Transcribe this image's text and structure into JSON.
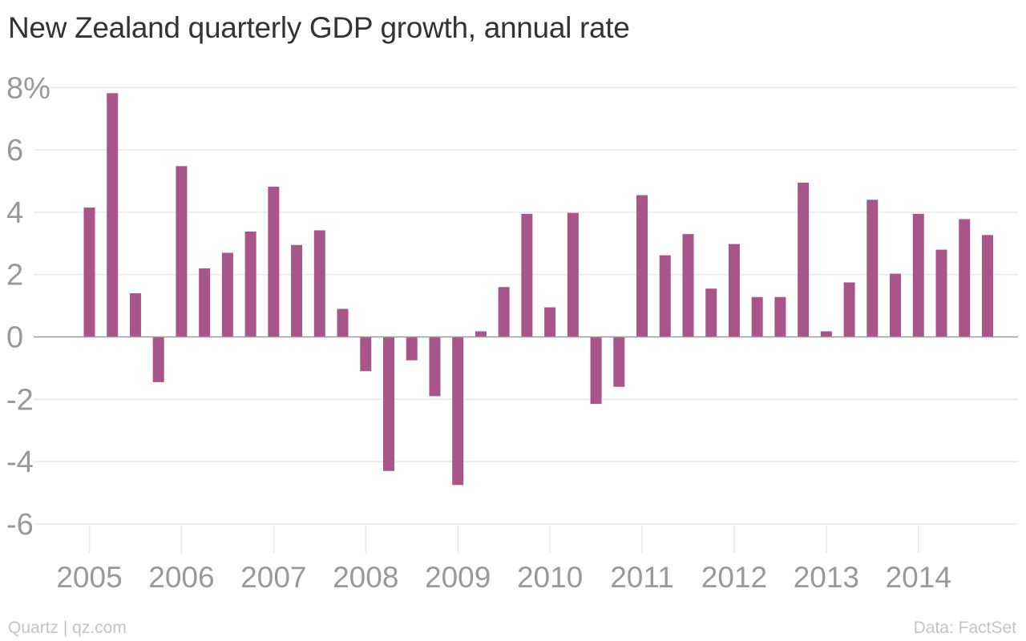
{
  "title": "New Zealand quarterly GDP growth, annual rate",
  "footer": {
    "source_left": "Quartz | qz.com",
    "source_right": "Data: FactSet"
  },
  "colors": {
    "bar": "#a8568a",
    "grid": "#e8e8e8",
    "zero_line": "#999999",
    "tick_label": "#999999",
    "title": "#333333"
  },
  "chart_data": {
    "type": "bar",
    "title": "New Zealand quarterly GDP growth, annual rate",
    "xlabel": "",
    "ylabel": "",
    "ylim": [
      -7,
      8.5
    ],
    "y_ticks": [
      {
        "value": 8,
        "label": "8%"
      },
      {
        "value": 6,
        "label": "6"
      },
      {
        "value": 4,
        "label": "4"
      },
      {
        "value": 2,
        "label": "2"
      },
      {
        "value": 0,
        "label": "0"
      },
      {
        "value": -2,
        "label": "-2"
      },
      {
        "value": -4,
        "label": "-4"
      },
      {
        "value": -6,
        "label": "-6"
      }
    ],
    "x_ticks": [
      "2005",
      "2006",
      "2007",
      "2008",
      "2009",
      "2010",
      "2011",
      "2012",
      "2013",
      "2014"
    ],
    "categories": [
      "2005 Q1",
      "2005 Q2",
      "2005 Q3",
      "2005 Q4",
      "2006 Q1",
      "2006 Q2",
      "2006 Q3",
      "2006 Q4",
      "2007 Q1",
      "2007 Q2",
      "2007 Q3",
      "2007 Q4",
      "2008 Q1",
      "2008 Q2",
      "2008 Q3",
      "2008 Q4",
      "2009 Q1",
      "2009 Q2",
      "2009 Q3",
      "2009 Q4",
      "2010 Q1",
      "2010 Q2",
      "2010 Q3",
      "2010 Q4",
      "2011 Q1",
      "2011 Q2",
      "2011 Q3",
      "2011 Q4",
      "2012 Q1",
      "2012 Q2",
      "2012 Q3",
      "2012 Q4",
      "2013 Q1",
      "2013 Q2",
      "2013 Q3",
      "2013 Q4",
      "2014 Q1",
      "2014 Q2",
      "2014 Q3",
      "2014 Q4"
    ],
    "values": [
      4.15,
      7.82,
      1.4,
      -1.45,
      5.48,
      2.2,
      2.7,
      3.38,
      4.82,
      2.95,
      3.42,
      0.9,
      -1.1,
      -4.3,
      -0.75,
      -1.9,
      -4.75,
      0.18,
      1.6,
      3.95,
      0.95,
      3.98,
      -2.15,
      -1.6,
      4.55,
      2.62,
      3.3,
      1.55,
      2.98,
      1.28,
      1.28,
      4.95,
      0.18,
      1.75,
      4.4,
      2.03,
      3.95,
      2.8,
      3.78,
      3.27
    ],
    "grid": true,
    "legend": "none"
  }
}
